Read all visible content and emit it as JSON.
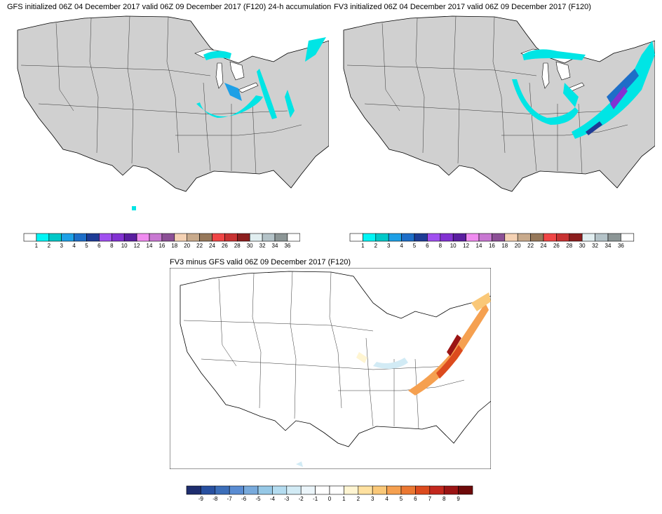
{
  "panels": [
    {
      "title": "GFS initialized 06Z 04 December 2017 valid 06Z 09 December 2017 (F120) 24-h accumulation",
      "land_color": "#d0d0d0"
    },
    {
      "title": "FV3 initialized 06Z 04 December 2017 valid 06Z 09 December 2017 (F120)",
      "land_color": "#d0d0d0"
    },
    {
      "title": "FV3 minus GFS valid 06Z 09 December 2017 (F120)",
      "land_color": "#ffffff"
    }
  ],
  "colorbar_accum": {
    "labels": [
      "1",
      "2",
      "3",
      "4",
      "5",
      "6",
      "8",
      "10",
      "12",
      "14",
      "16",
      "18",
      "20",
      "22",
      "24",
      "26",
      "28",
      "30",
      "32",
      "34",
      "36"
    ],
    "colors": [
      "#ffffff",
      "#00f5f5",
      "#00c8c8",
      "#1ea0e6",
      "#1e6ec8",
      "#1e3c96",
      "#a050f0",
      "#8232d2",
      "#5a1ea0",
      "#f08cf0",
      "#c878d2",
      "#8c5096",
      "#f5d2b4",
      "#c8aa8c",
      "#96785a",
      "#f04646",
      "#c83232",
      "#8c1e1e",
      "#e1eef0",
      "#b4c3c8",
      "#8c9696",
      "#ffffff"
    ]
  },
  "colorbar_diff": {
    "labels": [
      "-9",
      "-8",
      "-7",
      "-6",
      "-5",
      "-4",
      "-3",
      "-2",
      "-1",
      "0",
      "1",
      "2",
      "3",
      "4",
      "5",
      "6",
      "7",
      "8",
      "9"
    ],
    "colors": [
      "#1e2d6e",
      "#2850a0",
      "#3c6eb9",
      "#5a8cd2",
      "#78aadc",
      "#96c8e6",
      "#b4dcf0",
      "#d2ebf5",
      "#ebf5fa",
      "#ffffff",
      "#ffffff",
      "#fff5d2",
      "#ffe1a0",
      "#fac878",
      "#f5a050",
      "#eb7832",
      "#dc4b1e",
      "#c3281e",
      "#9b1414",
      "#6e0a0a"
    ]
  }
}
